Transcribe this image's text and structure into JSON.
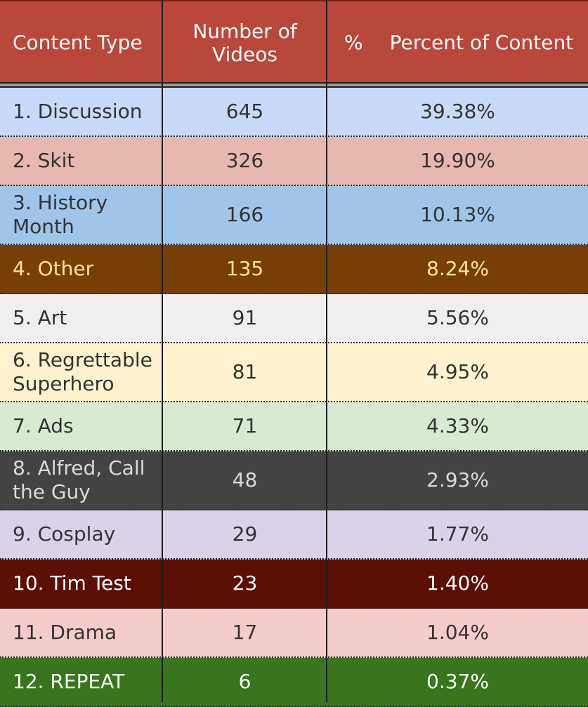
{
  "header": {
    "col1": "Content Type",
    "col2_line1": "Number of",
    "col2_line2": "Videos",
    "col3_pct": "%",
    "col3_label": "Percent of Content"
  },
  "rows": [
    {
      "type_line1": "1. Discussion",
      "type_line2": "",
      "count": "645",
      "percent": "39.38%",
      "bg": "#c9daf8",
      "fg": "#333333"
    },
    {
      "type_line1": "2. Skit",
      "type_line2": "",
      "count": "326",
      "percent": "19.90%",
      "bg": "#e6b8af",
      "fg": "#333333"
    },
    {
      "type_line1": "3. History",
      "type_line2": "Month",
      "count": "166",
      "percent": "10.13%",
      "bg": "#9fc5e8",
      "fg": "#333333"
    },
    {
      "type_line1": "4. Other",
      "type_line2": "",
      "count": "135",
      "percent": "8.24%",
      "bg": "#783f04",
      "fg": "#ffe599"
    },
    {
      "type_line1": "5. Art",
      "type_line2": "",
      "count": "91",
      "percent": "5.56%",
      "bg": "#efefef",
      "fg": "#333333"
    },
    {
      "type_line1": "6. Regrettable",
      "type_line2": "Superhero",
      "count": "81",
      "percent": "4.95%",
      "bg": "#fff2cc",
      "fg": "#333333"
    },
    {
      "type_line1": "7. Ads",
      "type_line2": "",
      "count": "71",
      "percent": "4.33%",
      "bg": "#d9ead3",
      "fg": "#333333"
    },
    {
      "type_line1": "8. Alfred, Call",
      "type_line2": "the Guy",
      "count": "48",
      "percent": "2.93%",
      "bg": "#434343",
      "fg": "#d9d9d9"
    },
    {
      "type_line1": "9. Cosplay",
      "type_line2": "",
      "count": "29",
      "percent": "1.77%",
      "bg": "#d9d2e9",
      "fg": "#333333"
    },
    {
      "type_line1": "10. Tim Test",
      "type_line2": "",
      "count": "23",
      "percent": "1.40%",
      "bg": "#5b0f00",
      "fg": "#ffffff"
    },
    {
      "type_line1": "11. Drama",
      "type_line2": "",
      "count": "17",
      "percent": "1.04%",
      "bg": "#f4cccc",
      "fg": "#333333"
    },
    {
      "type_line1": "12. REPEAT",
      "type_line2": "",
      "count": "6",
      "percent": "0.37%",
      "bg": "#38761d",
      "fg": "#ffffff"
    }
  ]
}
